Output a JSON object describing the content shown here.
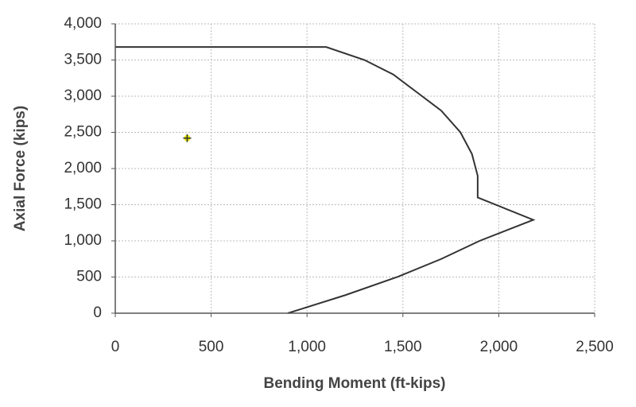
{
  "chart_data": {
    "type": "line",
    "xlabel": "Bending Moment (ft-kips)",
    "ylabel": "Axial Force (kips)",
    "xlim": [
      0,
      2500
    ],
    "xticks": [
      0,
      500,
      {
        "value": 1000,
        "label": "1,000"
      },
      {
        "value": 1500,
        "label": "1,500"
      },
      {
        "value": 2000,
        "label": "2,000"
      },
      {
        "value": 2500,
        "label": "2,500"
      }
    ],
    "ylim": [
      0,
      4000
    ],
    "yticks": [
      0,
      500,
      {
        "value": 1000,
        "label": "1,000"
      },
      {
        "value": 1500,
        "label": "1,500"
      },
      {
        "value": 2000,
        "label": "2,000"
      },
      {
        "value": 2500,
        "label": "2,500"
      },
      {
        "value": 3000,
        "label": "3,000"
      },
      {
        "value": 3500,
        "label": "3,500"
      },
      {
        "value": 4000,
        "label": "4,000"
      }
    ],
    "grid": true,
    "series": [
      {
        "type": "line",
        "color": "#333333",
        "x": [
          0,
          1100,
          1300,
          1450,
          1600,
          1700,
          1800,
          1860,
          1890,
          1890,
          2180,
          1900,
          1700,
          1470,
          1200,
          900
        ],
        "values": [
          3680,
          3680,
          3500,
          3300,
          3000,
          2800,
          2500,
          2200,
          1900,
          1600,
          1290,
          1000,
          750,
          500,
          250,
          0
        ]
      },
      {
        "type": "scatter",
        "color": "#e8e800",
        "x": [
          375
        ],
        "values": [
          2420
        ]
      }
    ]
  }
}
